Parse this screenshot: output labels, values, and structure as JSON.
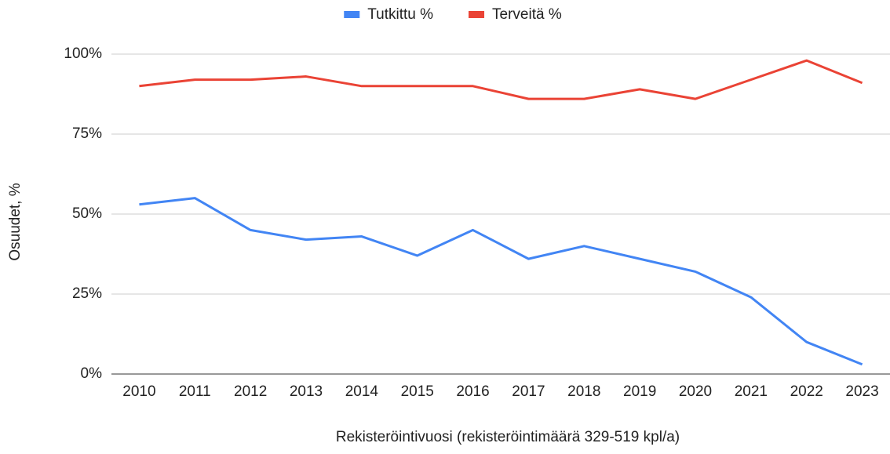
{
  "chart_data": {
    "type": "line",
    "x_label": "Rekisteröintivuosi (rekisteröintimäärä 329-519 kpl/a)",
    "y_label": "Osuudet, %",
    "categories": [
      "2010",
      "2011",
      "2012",
      "2013",
      "2014",
      "2015",
      "2016",
      "2017",
      "2018",
      "2019",
      "2020",
      "2021",
      "2022",
      "2023"
    ],
    "series": [
      {
        "name": "Tutkittu %",
        "color": "#4285f4",
        "values": [
          53,
          55,
          45,
          42,
          43,
          37,
          45,
          36,
          40,
          36,
          32,
          24,
          10,
          3
        ]
      },
      {
        "name": "Terveitä %",
        "color": "#ea4335",
        "values": [
          90,
          92,
          92,
          93,
          90,
          90,
          90,
          86,
          86,
          89,
          86,
          92,
          98,
          91
        ]
      }
    ],
    "ylim": [
      0,
      100
    ],
    "yticks": [
      {
        "value": 0,
        "label": "0%"
      },
      {
        "value": 25,
        "label": "25%"
      },
      {
        "value": 50,
        "label": "50%"
      },
      {
        "value": 75,
        "label": "75%"
      },
      {
        "value": 100,
        "label": "100%"
      }
    ],
    "grid": true,
    "legend": "top"
  }
}
